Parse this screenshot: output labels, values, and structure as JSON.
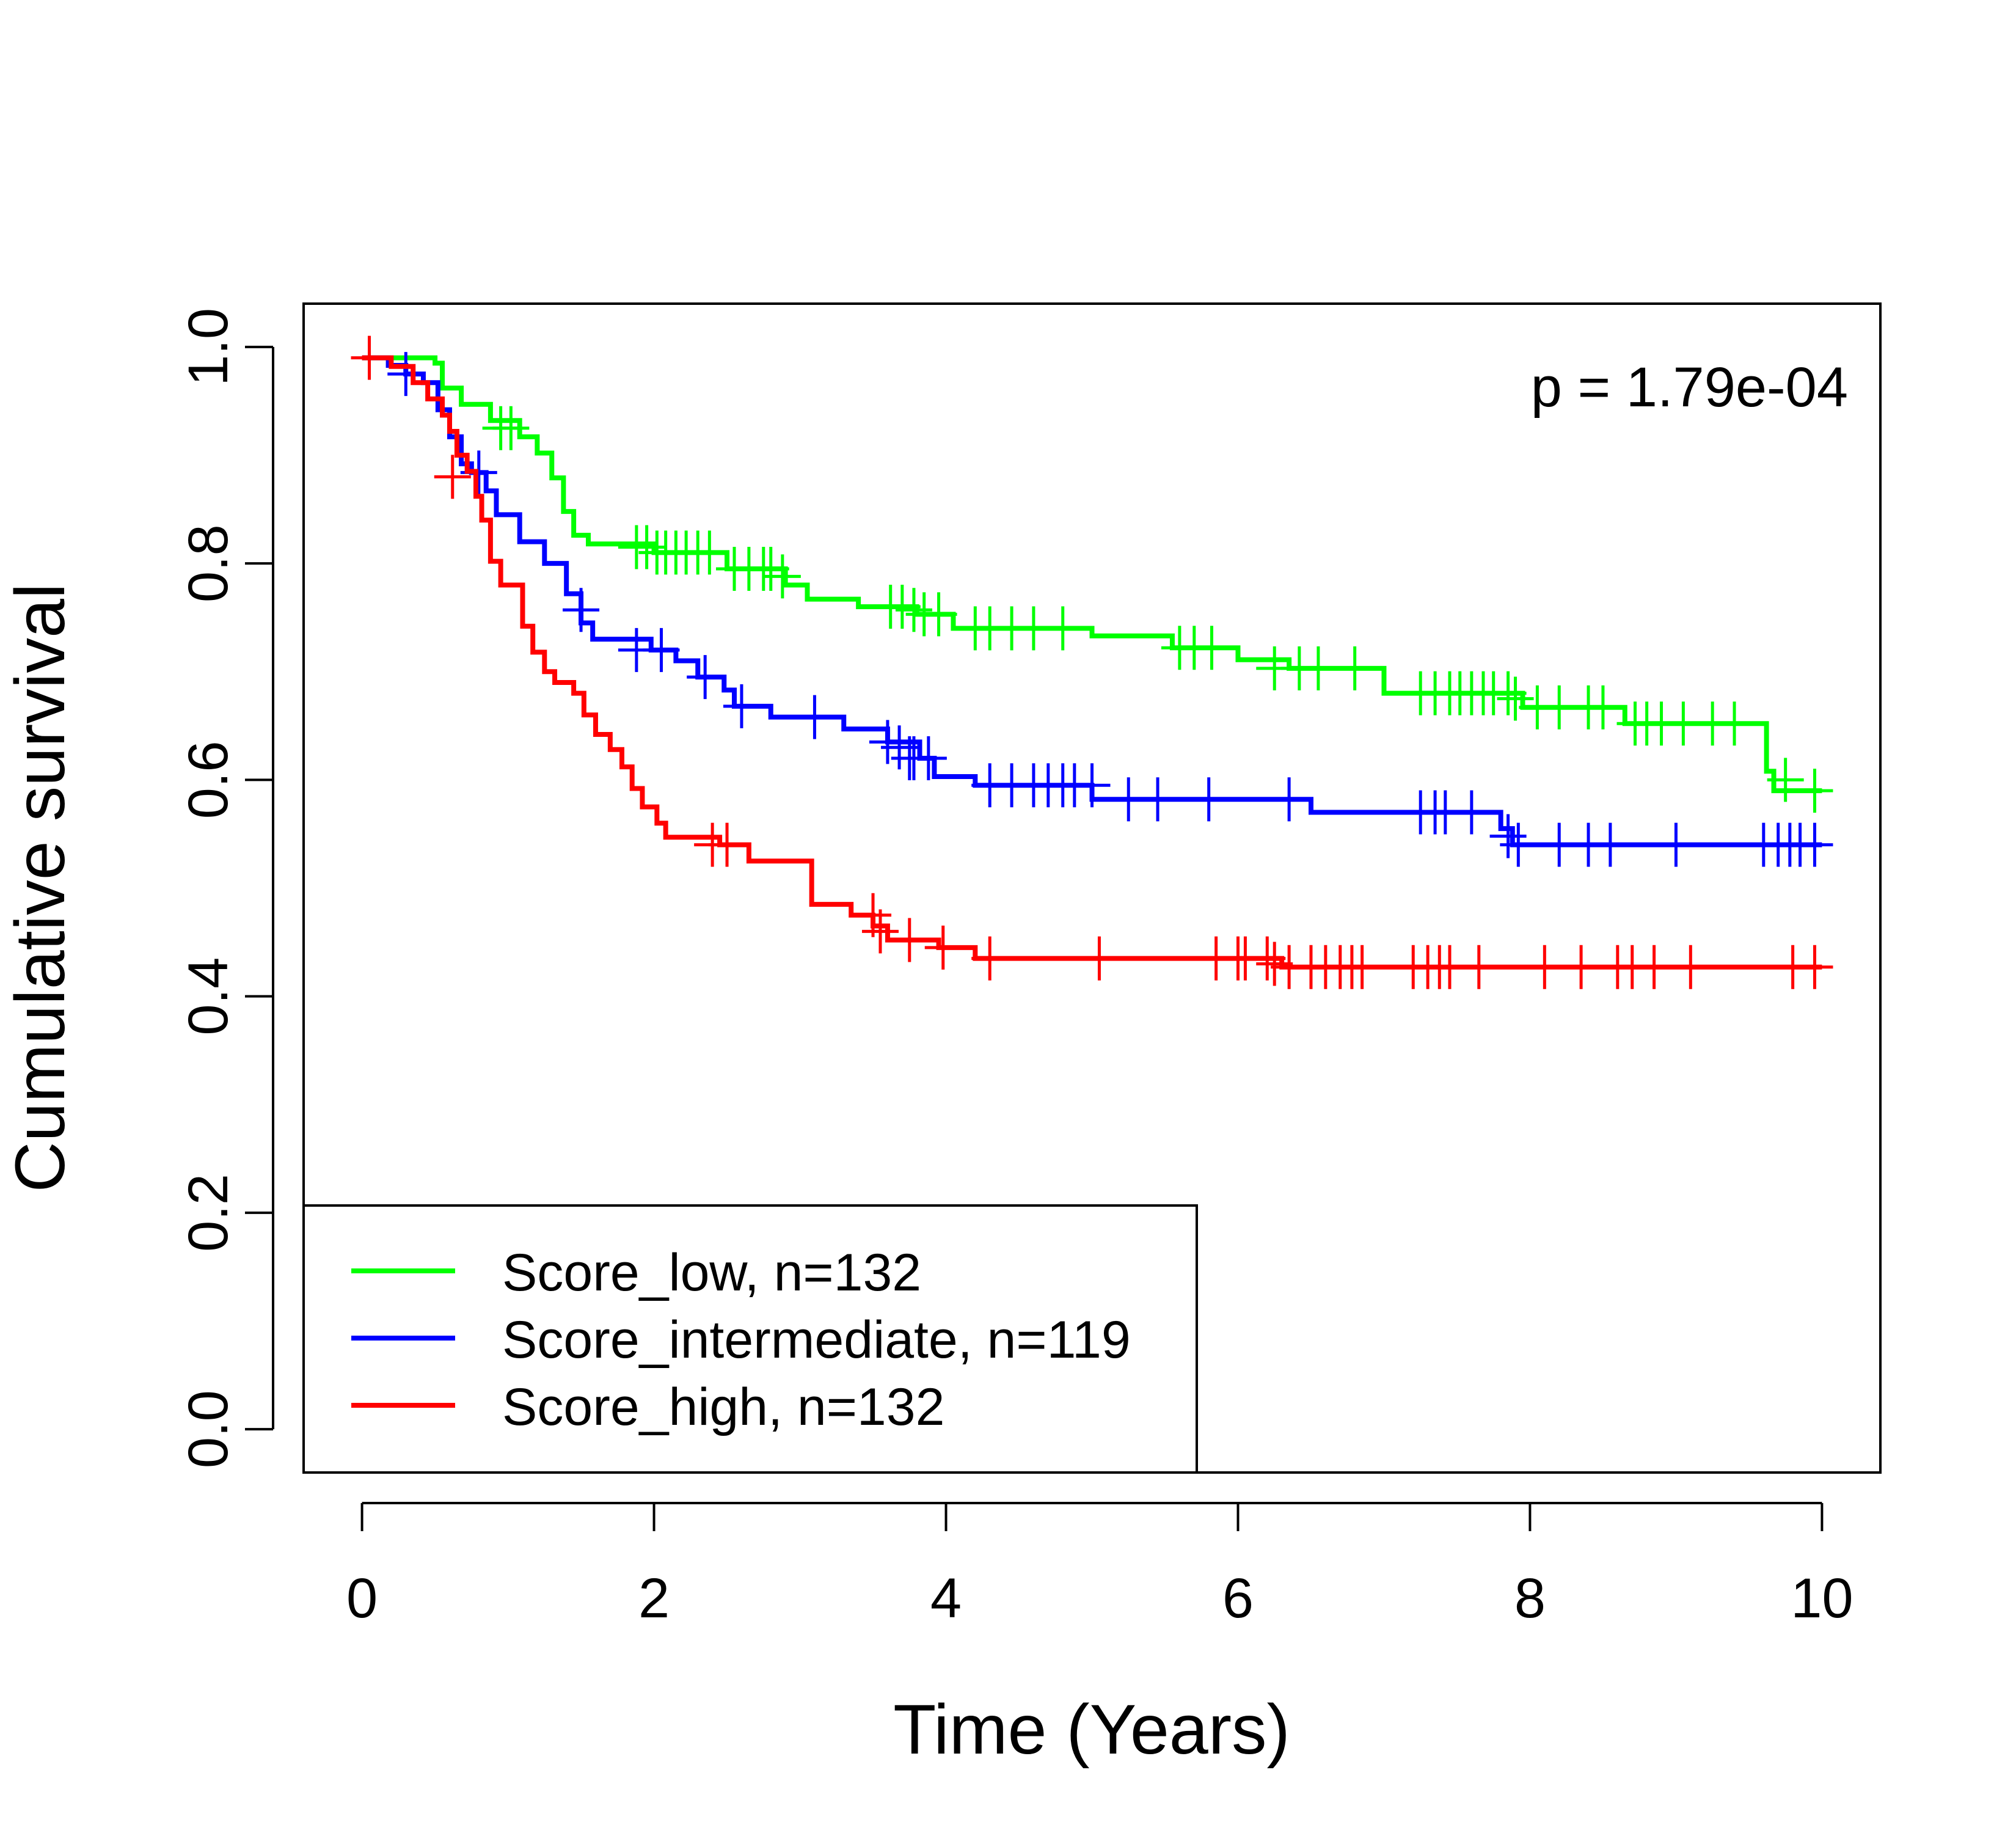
{
  "chart_data": {
    "type": "line",
    "xlabel": "Time (Years)",
    "ylabel": "Cumulative survival",
    "xlim": [
      -0.4,
      10.4
    ],
    "ylim": [
      -0.04,
      1.04
    ],
    "x_ticks": [
      "0",
      "2",
      "4",
      "6",
      "8",
      "10"
    ],
    "y_ticks": [
      "0.0",
      "0.2",
      "0.4",
      "0.6",
      "0.8",
      "1.0"
    ],
    "annotation": "p = 1.79e-04",
    "legend_position": "bottom-left",
    "grid": false,
    "series": [
      {
        "name": "Score_low, n=132",
        "color": "#00ff00",
        "steps": [
          [
            0,
            0.99
          ],
          [
            0.5,
            0.985
          ],
          [
            0.55,
            0.962
          ],
          [
            0.68,
            0.947
          ],
          [
            0.88,
            0.932
          ],
          [
            1.08,
            0.917
          ],
          [
            1.2,
            0.902
          ],
          [
            1.3,
            0.879
          ],
          [
            1.38,
            0.848
          ],
          [
            1.45,
            0.826
          ],
          [
            1.55,
            0.818
          ],
          [
            2.0,
            0.81
          ],
          [
            2.5,
            0.795
          ],
          [
            2.9,
            0.78
          ],
          [
            3.05,
            0.767
          ],
          [
            3.4,
            0.76
          ],
          [
            3.8,
            0.753
          ],
          [
            4.05,
            0.74
          ],
          [
            5.0,
            0.733
          ],
          [
            5.55,
            0.722
          ],
          [
            6.0,
            0.711
          ],
          [
            6.35,
            0.703
          ],
          [
            7.0,
            0.68
          ],
          [
            7.95,
            0.667
          ],
          [
            8.65,
            0.652
          ],
          [
            9.62,
            0.608
          ],
          [
            9.67,
            0.59
          ],
          [
            10.0,
            0.59
          ]
        ],
        "censors": [
          [
            0.95,
            0.925
          ],
          [
            1.02,
            0.925
          ],
          [
            1.88,
            0.815
          ],
          [
            1.95,
            0.815
          ],
          [
            2.02,
            0.81
          ],
          [
            2.08,
            0.81
          ],
          [
            2.15,
            0.81
          ],
          [
            2.22,
            0.81
          ],
          [
            2.3,
            0.81
          ],
          [
            2.38,
            0.81
          ],
          [
            2.55,
            0.795
          ],
          [
            2.65,
            0.795
          ],
          [
            2.75,
            0.795
          ],
          [
            2.8,
            0.795
          ],
          [
            2.88,
            0.788
          ],
          [
            3.62,
            0.76
          ],
          [
            3.7,
            0.76
          ],
          [
            3.78,
            0.757
          ],
          [
            3.85,
            0.753
          ],
          [
            3.95,
            0.753
          ],
          [
            4.2,
            0.74
          ],
          [
            4.3,
            0.74
          ],
          [
            4.45,
            0.74
          ],
          [
            4.6,
            0.74
          ],
          [
            4.8,
            0.74
          ],
          [
            5.6,
            0.722
          ],
          [
            5.7,
            0.722
          ],
          [
            5.82,
            0.722
          ],
          [
            6.25,
            0.703
          ],
          [
            6.42,
            0.703
          ],
          [
            6.55,
            0.703
          ],
          [
            6.8,
            0.703
          ],
          [
            7.25,
            0.68
          ],
          [
            7.35,
            0.68
          ],
          [
            7.45,
            0.68
          ],
          [
            7.52,
            0.68
          ],
          [
            7.6,
            0.68
          ],
          [
            7.68,
            0.68
          ],
          [
            7.75,
            0.68
          ],
          [
            7.85,
            0.68
          ],
          [
            7.9,
            0.675
          ],
          [
            8.05,
            0.667
          ],
          [
            8.2,
            0.667
          ],
          [
            8.4,
            0.667
          ],
          [
            8.5,
            0.667
          ],
          [
            8.72,
            0.652
          ],
          [
            8.8,
            0.652
          ],
          [
            8.9,
            0.652
          ],
          [
            9.05,
            0.652
          ],
          [
            9.25,
            0.652
          ],
          [
            9.4,
            0.652
          ],
          [
            9.75,
            0.6
          ],
          [
            9.95,
            0.59
          ]
        ]
      },
      {
        "name": "Score_intermediate, n=119",
        "color": "#0000ff",
        "steps": [
          [
            0,
            0.99
          ],
          [
            0.18,
            0.983
          ],
          [
            0.3,
            0.975
          ],
          [
            0.42,
            0.967
          ],
          [
            0.52,
            0.942
          ],
          [
            0.6,
            0.917
          ],
          [
            0.68,
            0.892
          ],
          [
            0.75,
            0.884
          ],
          [
            0.85,
            0.867
          ],
          [
            0.92,
            0.845
          ],
          [
            1.08,
            0.82
          ],
          [
            1.25,
            0.8
          ],
          [
            1.4,
            0.772
          ],
          [
            1.5,
            0.745
          ],
          [
            1.58,
            0.73
          ],
          [
            1.98,
            0.72
          ],
          [
            2.15,
            0.71
          ],
          [
            2.3,
            0.695
          ],
          [
            2.48,
            0.683
          ],
          [
            2.55,
            0.668
          ],
          [
            2.8,
            0.658
          ],
          [
            3.3,
            0.647
          ],
          [
            3.6,
            0.635
          ],
          [
            3.82,
            0.62
          ],
          [
            3.92,
            0.603
          ],
          [
            4.2,
            0.595
          ],
          [
            5.0,
            0.582
          ],
          [
            6.5,
            0.57
          ],
          [
            7.8,
            0.555
          ],
          [
            7.88,
            0.54
          ],
          [
            10.0,
            0.54
          ]
        ],
        "censors": [
          [
            0.3,
            0.975
          ],
          [
            0.8,
            0.884
          ],
          [
            1.5,
            0.757
          ],
          [
            1.88,
            0.72
          ],
          [
            2.05,
            0.72
          ],
          [
            2.35,
            0.695
          ],
          [
            2.6,
            0.668
          ],
          [
            3.1,
            0.658
          ],
          [
            3.6,
            0.635
          ],
          [
            3.68,
            0.63
          ],
          [
            3.75,
            0.62
          ],
          [
            3.78,
            0.62
          ],
          [
            3.88,
            0.62
          ],
          [
            4.3,
            0.595
          ],
          [
            4.45,
            0.595
          ],
          [
            4.6,
            0.595
          ],
          [
            4.7,
            0.595
          ],
          [
            4.8,
            0.595
          ],
          [
            4.88,
            0.595
          ],
          [
            5.0,
            0.595
          ],
          [
            5.25,
            0.582
          ],
          [
            5.45,
            0.582
          ],
          [
            5.8,
            0.582
          ],
          [
            6.35,
            0.582
          ],
          [
            7.25,
            0.57
          ],
          [
            7.35,
            0.57
          ],
          [
            7.42,
            0.57
          ],
          [
            7.6,
            0.57
          ],
          [
            7.85,
            0.548
          ],
          [
            7.92,
            0.54
          ],
          [
            8.2,
            0.54
          ],
          [
            8.4,
            0.54
          ],
          [
            8.55,
            0.54
          ],
          [
            9.0,
            0.54
          ],
          [
            9.6,
            0.54
          ],
          [
            9.7,
            0.54
          ],
          [
            9.78,
            0.54
          ],
          [
            9.85,
            0.54
          ],
          [
            9.95,
            0.54
          ]
        ]
      },
      {
        "name": "Score_high, n=132",
        "color": "#ff0000",
        "steps": [
          [
            0,
            0.99
          ],
          [
            0.2,
            0.982
          ],
          [
            0.35,
            0.967
          ],
          [
            0.45,
            0.952
          ],
          [
            0.55,
            0.937
          ],
          [
            0.6,
            0.922
          ],
          [
            0.65,
            0.9
          ],
          [
            0.72,
            0.885
          ],
          [
            0.78,
            0.862
          ],
          [
            0.82,
            0.84
          ],
          [
            0.88,
            0.802
          ],
          [
            0.95,
            0.78
          ],
          [
            1.1,
            0.742
          ],
          [
            1.17,
            0.718
          ],
          [
            1.25,
            0.7
          ],
          [
            1.32,
            0.69
          ],
          [
            1.45,
            0.68
          ],
          [
            1.52,
            0.66
          ],
          [
            1.6,
            0.642
          ],
          [
            1.7,
            0.628
          ],
          [
            1.78,
            0.612
          ],
          [
            1.85,
            0.592
          ],
          [
            1.92,
            0.575
          ],
          [
            2.02,
            0.56
          ],
          [
            2.08,
            0.547
          ],
          [
            2.45,
            0.54
          ],
          [
            2.65,
            0.525
          ],
          [
            3.08,
            0.485
          ],
          [
            3.35,
            0.475
          ],
          [
            3.5,
            0.465
          ],
          [
            3.6,
            0.452
          ],
          [
            3.95,
            0.445
          ],
          [
            4.2,
            0.435
          ],
          [
            6.3,
            0.427
          ],
          [
            10.0,
            0.427
          ]
        ],
        "censors": [
          [
            0.05,
            0.99
          ],
          [
            0.62,
            0.88
          ],
          [
            2.4,
            0.54
          ],
          [
            2.5,
            0.54
          ],
          [
            3.5,
            0.475
          ],
          [
            3.55,
            0.46
          ],
          [
            3.75,
            0.452
          ],
          [
            3.98,
            0.445
          ],
          [
            4.3,
            0.435
          ],
          [
            5.05,
            0.435
          ],
          [
            5.85,
            0.435
          ],
          [
            6.0,
            0.435
          ],
          [
            6.05,
            0.435
          ],
          [
            6.2,
            0.435
          ],
          [
            6.25,
            0.43
          ],
          [
            6.35,
            0.427
          ],
          [
            6.5,
            0.427
          ],
          [
            6.6,
            0.427
          ],
          [
            6.7,
            0.427
          ],
          [
            6.78,
            0.427
          ],
          [
            6.85,
            0.427
          ],
          [
            7.2,
            0.427
          ],
          [
            7.3,
            0.427
          ],
          [
            7.38,
            0.427
          ],
          [
            7.45,
            0.427
          ],
          [
            7.65,
            0.427
          ],
          [
            8.1,
            0.427
          ],
          [
            8.35,
            0.427
          ],
          [
            8.6,
            0.427
          ],
          [
            8.7,
            0.427
          ],
          [
            8.85,
            0.427
          ],
          [
            9.1,
            0.427
          ],
          [
            9.8,
            0.427
          ],
          [
            9.95,
            0.427
          ]
        ]
      }
    ]
  }
}
